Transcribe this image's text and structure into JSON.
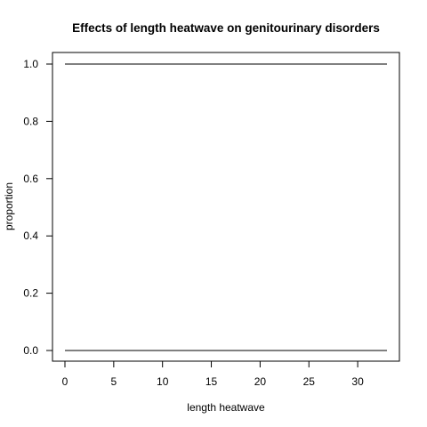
{
  "chart_data": {
    "type": "line",
    "title": "Effects of length heatwave on genitourinary disorders",
    "xlabel": "length heatwave",
    "ylabel": "proportion",
    "xlim": [
      0,
      33
    ],
    "ylim": [
      0.0,
      1.0
    ],
    "x_ticks": [
      0,
      5,
      10,
      15,
      20,
      25,
      30
    ],
    "x_tick_labels": [
      "0",
      "5",
      "10",
      "15",
      "20",
      "25",
      "30"
    ],
    "y_ticks": [
      0.0,
      0.2,
      0.4,
      0.6,
      0.8,
      1.0
    ],
    "y_tick_labels": [
      "0.0",
      "0.2",
      "0.4",
      "0.6",
      "0.8",
      "1.0"
    ],
    "grid": false,
    "legend": "none",
    "line_color": "#000000",
    "series": [
      {
        "x": [
          0,
          33
        ],
        "values": [
          1.0,
          1.0
        ]
      },
      {
        "x": [
          0,
          33
        ],
        "values": [
          0.0,
          0.0
        ]
      }
    ]
  }
}
